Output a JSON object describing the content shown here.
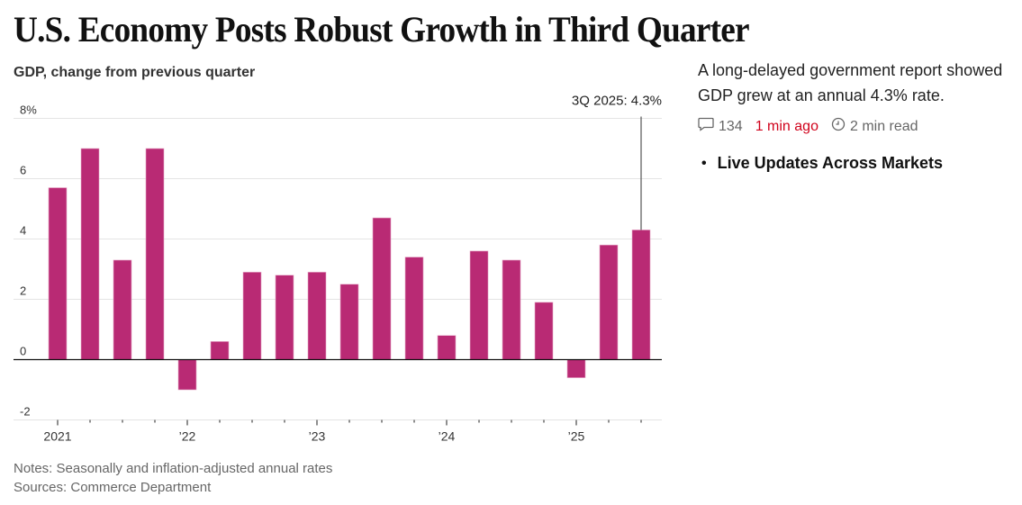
{
  "article": {
    "headline": "U.S. Economy Posts Robust Growth in Third Quarter",
    "summary": "A long-delayed government report showed GDP grew at an annual 4.3% rate.",
    "comments_count": "134",
    "timestamp": "1 min ago",
    "read_time": "2 min read",
    "related_link": "Live Updates Across Markets",
    "icons": {
      "comments": "comment-bubble-icon",
      "read_time": "clock-icon",
      "bullet": "bullet-icon"
    },
    "colors": {
      "timestamp": "#d0021b"
    }
  },
  "chart_data": {
    "type": "bar",
    "title": "GDP, change from previous quarter",
    "xlabel": "",
    "ylabel": "",
    "ylim": [
      -2,
      8
    ],
    "yticks": [
      -2,
      0,
      2,
      4,
      6,
      8
    ],
    "ytick_labels": [
      "-2",
      "0",
      "2",
      "4",
      "6",
      "8%"
    ],
    "grid": true,
    "categories": [
      "1Q 2021",
      "2Q 2021",
      "3Q 2021",
      "4Q 2021",
      "1Q 2022",
      "2Q 2022",
      "3Q 2022",
      "4Q 2022",
      "1Q 2023",
      "2Q 2023",
      "3Q 2023",
      "4Q 2023",
      "1Q 2024",
      "2Q 2024",
      "3Q 2024",
      "4Q 2024",
      "1Q 2025",
      "2Q 2025",
      "3Q 2025"
    ],
    "values": [
      5.7,
      7.0,
      3.3,
      7.0,
      -1.0,
      0.6,
      2.9,
      2.8,
      2.9,
      2.5,
      4.7,
      3.4,
      0.8,
      3.6,
      3.3,
      1.9,
      -0.6,
      3.8,
      4.3
    ],
    "xtick_labels": [
      {
        "index": 0,
        "label": "2021"
      },
      {
        "index": 4,
        "label": "’22"
      },
      {
        "index": 8,
        "label": "’23"
      },
      {
        "index": 12,
        "label": "’24"
      },
      {
        "index": 16,
        "label": "’25"
      }
    ],
    "annotation": {
      "index": 18,
      "text": "3Q 2025: 4.3%"
    },
    "bar_color": "#b92a74",
    "notes": "Notes: Seasonally and inflation-adjusted annual rates",
    "sources": "Sources: Commerce Department"
  }
}
